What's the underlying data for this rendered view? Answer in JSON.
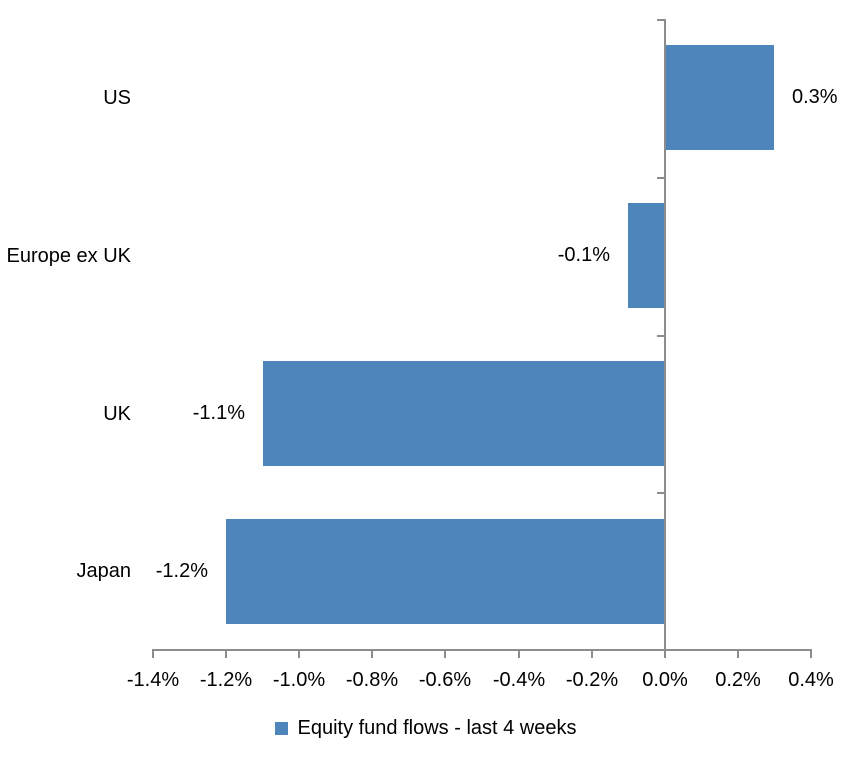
{
  "chart_data": {
    "type": "bar",
    "orientation": "horizontal",
    "title": "",
    "xlabel": "",
    "ylabel": "",
    "categories": [
      "US",
      "Europe ex UK",
      "UK",
      "Japan"
    ],
    "values": [
      0.3,
      -0.1,
      -1.1,
      -1.2
    ],
    "value_labels": [
      "0.3%",
      "-0.1%",
      "-1.1%",
      "-1.2%"
    ],
    "series": [
      {
        "name": "Equity fund flows - last 4 weeks",
        "values": [
          0.3,
          -0.1,
          -1.1,
          -1.2
        ]
      }
    ],
    "xlim": [
      -1.4,
      0.4
    ],
    "x_ticks": [
      -1.4,
      -1.2,
      -1.0,
      -0.8,
      -0.6,
      -0.4,
      -0.2,
      0.0,
      0.2,
      0.4
    ],
    "x_tick_labels": [
      "-1.4%",
      "-1.2%",
      "-1.0%",
      "-0.8%",
      "-0.6%",
      "-0.4%",
      "-0.2%",
      "0.0%",
      "0.2%",
      "0.4%"
    ],
    "grid": false,
    "legend": {
      "label": "Equity fund flows - last 4 weeks",
      "position": "bottom"
    },
    "colors": {
      "bar": "#4E86BC",
      "axis": "#8C8C8C",
      "text": "#000000",
      "background": "#FFFFFF"
    }
  }
}
